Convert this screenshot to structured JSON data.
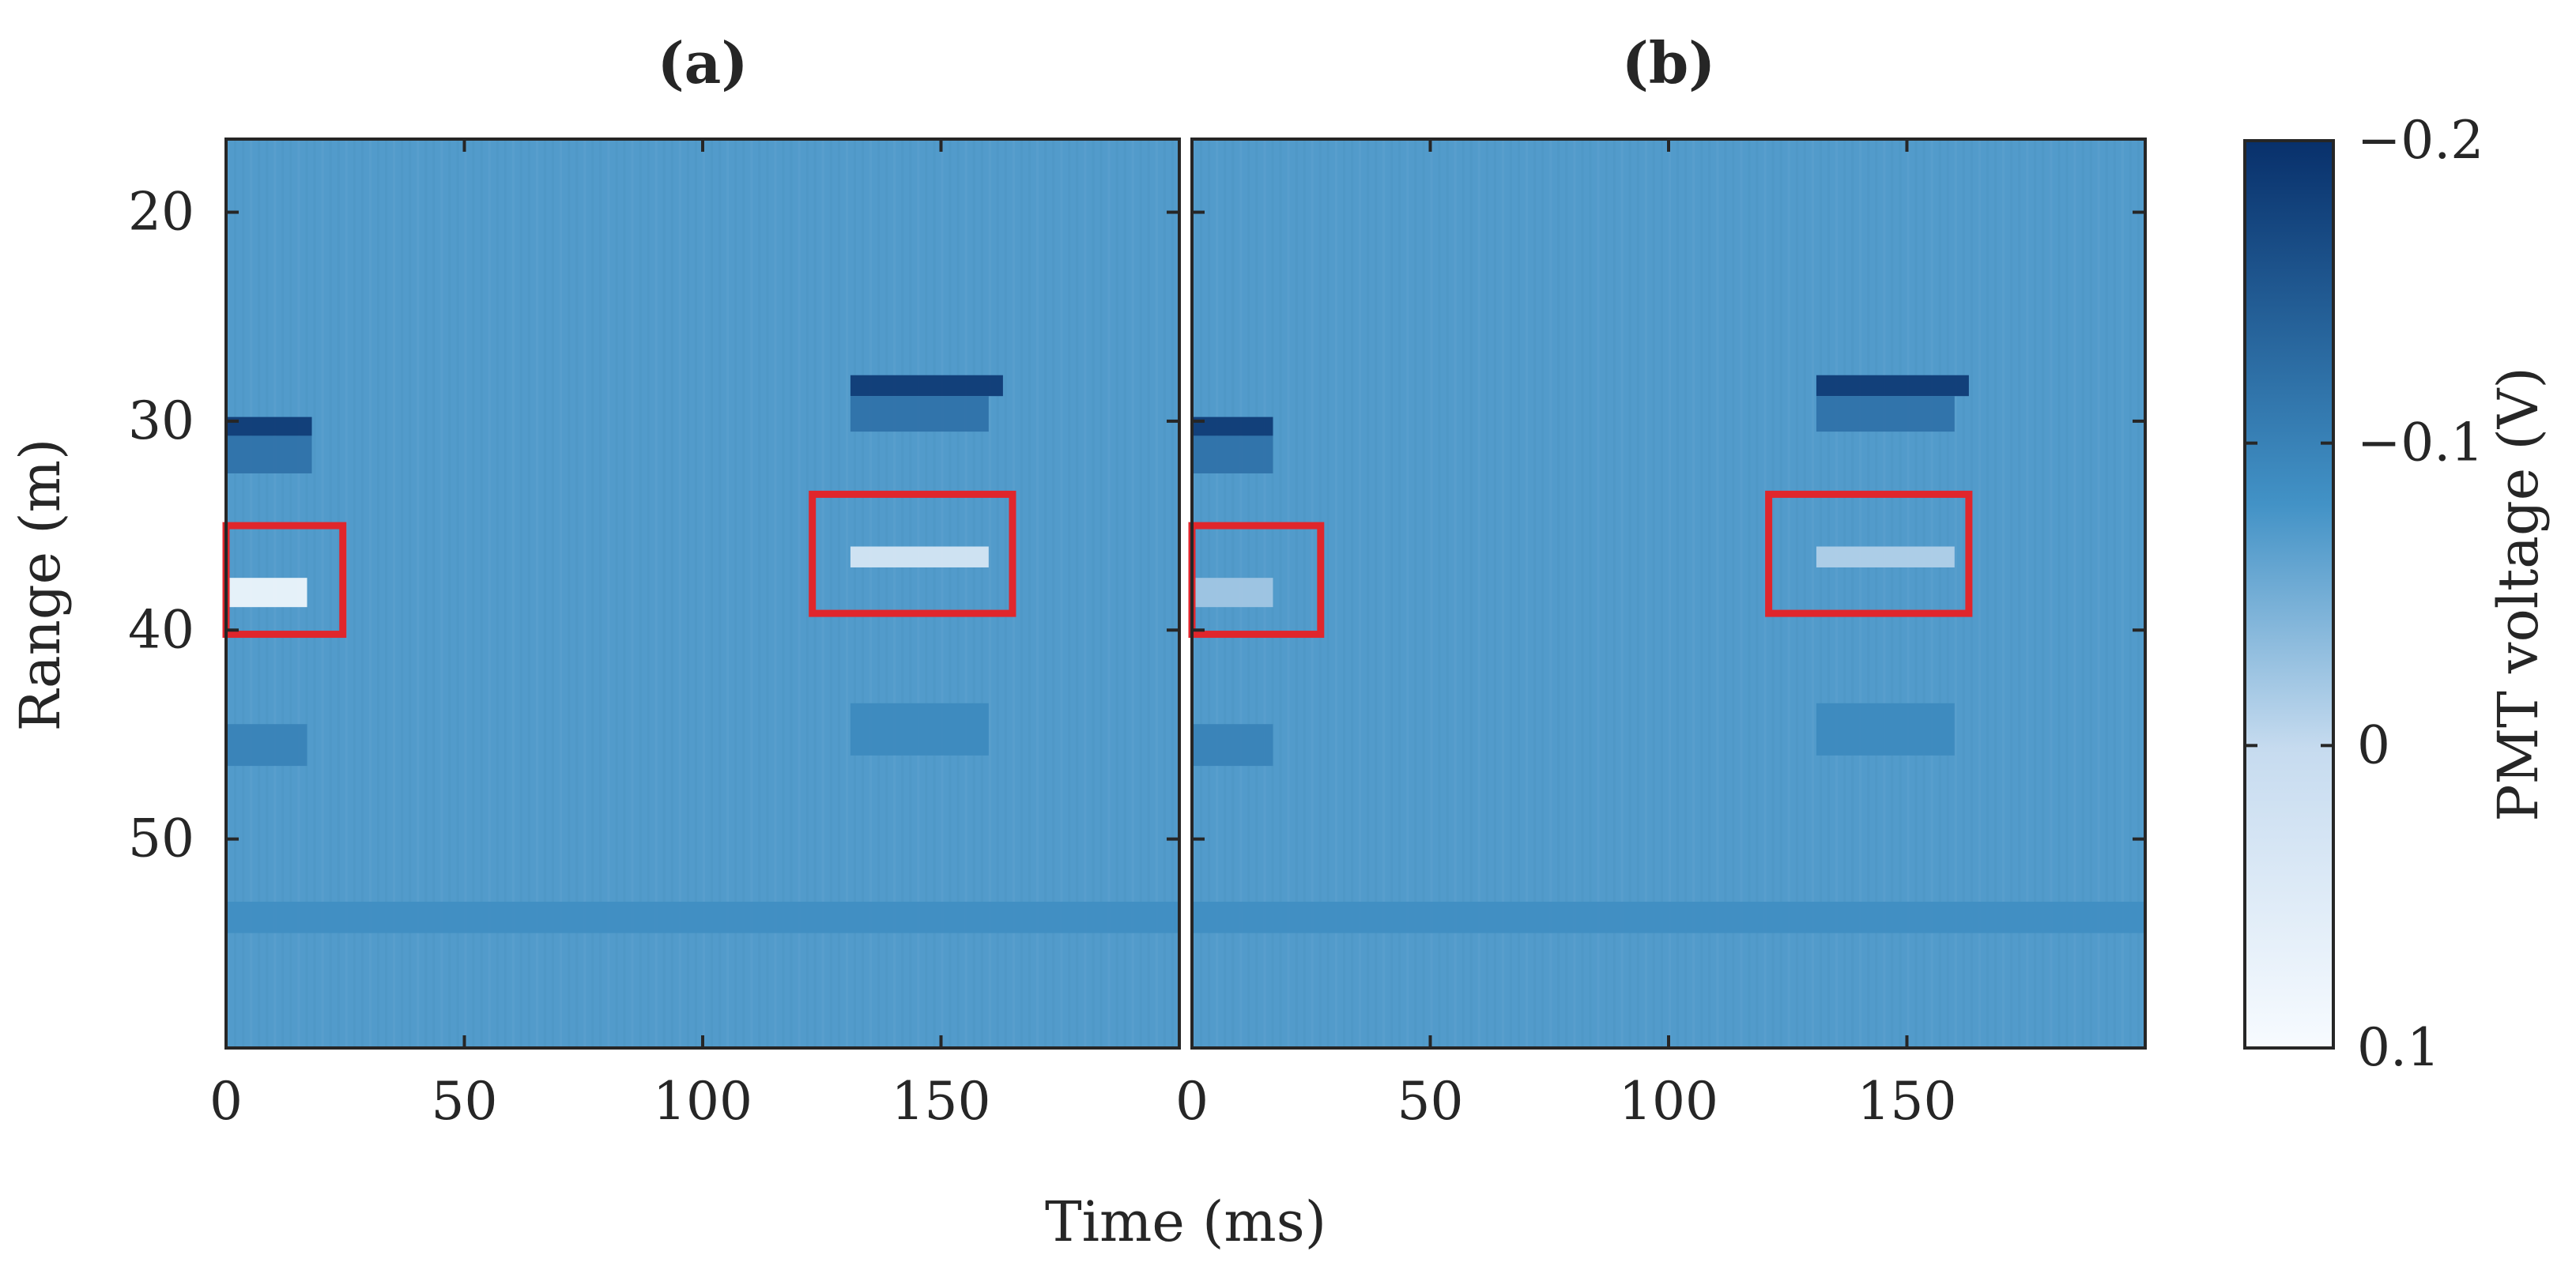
{
  "chart_data": [
    {
      "type": "heatmap",
      "title": "(a)",
      "xlabel": "Time (ms)",
      "ylabel": "Range (m)",
      "xlim": [
        0,
        200
      ],
      "ylim": [
        16.5,
        60
      ],
      "y_reversed": true,
      "xticks": [
        0,
        50,
        100,
        150
      ],
      "xtick_labels": [
        "0",
        "50",
        "100",
        "150"
      ],
      "yticks": [
        20,
        30,
        40,
        50
      ],
      "ytick_labels": [
        "20",
        "30",
        "40",
        "50"
      ],
      "background_value": -0.07,
      "features": [
        {
          "name": "",
          "x": [
            0,
            18
          ],
          "y": [
            29.8,
            30.7
          ],
          "value": -0.19
        },
        {
          "name": "",
          "x": [
            0,
            18
          ],
          "y": [
            30.7,
            32.5
          ],
          "value": -0.12
        },
        {
          "name": "",
          "x": [
            0,
            17
          ],
          "y": [
            37.5,
            38.9
          ],
          "value": 0.09
        },
        {
          "name": "",
          "x": [
            0,
            17
          ],
          "y": [
            44.5,
            46.5
          ],
          "value": -0.1
        },
        {
          "name": "",
          "x": [
            131,
            163
          ],
          "y": [
            27.8,
            28.8
          ],
          "value": -0.19
        },
        {
          "name": "",
          "x": [
            131,
            160
          ],
          "y": [
            28.8,
            30.5
          ],
          "value": -0.12
        },
        {
          "name": "",
          "x": [
            131,
            160
          ],
          "y": [
            36,
            37
          ],
          "value": 0.04
        },
        {
          "name": "",
          "x": [
            131,
            160
          ],
          "y": [
            43.5,
            46
          ],
          "value": -0.09
        },
        {
          "name": "",
          "x": [
            0,
            200
          ],
          "y": [
            53,
            54.5
          ],
          "value": -0.085
        }
      ],
      "annotations": [
        {
          "shape": "rectangle",
          "color": "#e0262c",
          "x": [
            0,
            24.5
          ],
          "y": [
            35,
            40.2
          ]
        },
        {
          "shape": "rectangle",
          "color": "#e0262c",
          "x": [
            123,
            165
          ],
          "y": [
            33.5,
            39.2
          ]
        }
      ]
    },
    {
      "type": "heatmap",
      "title": "(b)",
      "xlabel": "Time (ms)",
      "ylabel": "",
      "xlim": [
        0,
        200
      ],
      "ylim": [
        16.5,
        60
      ],
      "y_reversed": true,
      "xticks": [
        0,
        50,
        100,
        150
      ],
      "xtick_labels": [
        "0",
        "50",
        "100",
        "150"
      ],
      "yticks": [
        20,
        30,
        40,
        50
      ],
      "ytick_labels": [],
      "background_value": -0.07,
      "features": [
        {
          "name": "",
          "x": [
            0,
            17
          ],
          "y": [
            29.8,
            30.7
          ],
          "value": -0.19
        },
        {
          "name": "",
          "x": [
            0,
            17
          ],
          "y": [
            30.7,
            32.5
          ],
          "value": -0.12
        },
        {
          "name": "",
          "x": [
            0,
            17
          ],
          "y": [
            37.5,
            38.9
          ],
          "value": -0.02
        },
        {
          "name": "",
          "x": [
            0,
            17
          ],
          "y": [
            44.5,
            46.5
          ],
          "value": -0.1
        },
        {
          "name": "",
          "x": [
            131,
            163
          ],
          "y": [
            27.8,
            28.8
          ],
          "value": -0.19
        },
        {
          "name": "",
          "x": [
            131,
            160
          ],
          "y": [
            28.8,
            30.5
          ],
          "value": -0.12
        },
        {
          "name": "",
          "x": [
            131,
            160
          ],
          "y": [
            36,
            37
          ],
          "value": -0.01
        },
        {
          "name": "",
          "x": [
            131,
            160
          ],
          "y": [
            43.5,
            46
          ],
          "value": -0.09
        },
        {
          "name": "",
          "x": [
            0,
            200
          ],
          "y": [
            53,
            54.5
          ],
          "value": -0.085
        }
      ],
      "annotations": [
        {
          "shape": "rectangle",
          "color": "#e0262c",
          "x": [
            0,
            27
          ],
          "y": [
            35,
            40.2
          ]
        },
        {
          "shape": "rectangle",
          "color": "#e0262c",
          "x": [
            121,
            163
          ],
          "y": [
            33.5,
            39.2
          ]
        }
      ]
    }
  ],
  "colorbar": {
    "label": "PMT voltage (V)",
    "range": [
      0.1,
      -0.2
    ],
    "ticks": [
      -0.2,
      -0.1,
      0,
      0.1
    ],
    "tick_labels": [
      "−0.2",
      "−0.1",
      "0",
      "0.1"
    ],
    "colors": [
      "#f7fbff",
      "#c6dbef",
      "#4292c6",
      "#08306b"
    ]
  },
  "colors": {
    "annotation": "#e0262c",
    "frame": "#262626"
  }
}
